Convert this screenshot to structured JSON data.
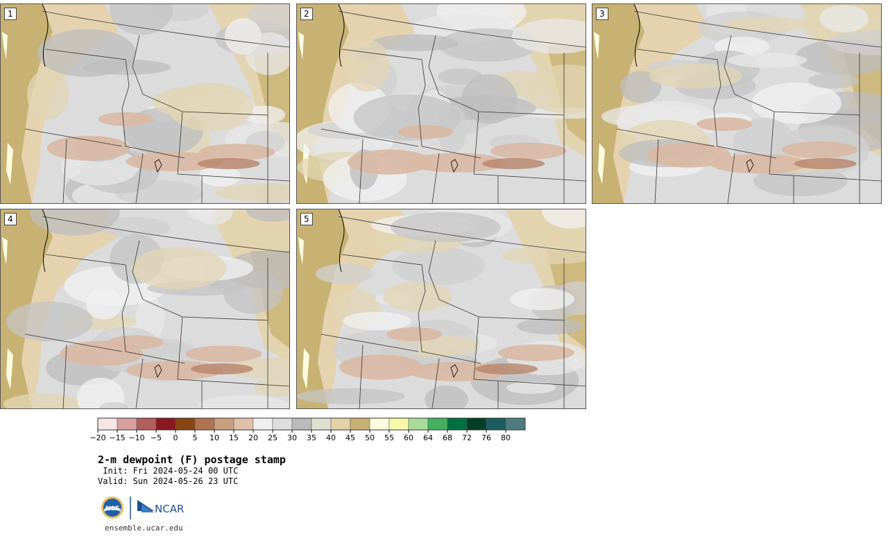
{
  "title": "2-m dewpoint (F) postage stamp",
  "init": " Init: Fri 2024-05-24 00 UTC",
  "valid": "Valid: Sun 2024-05-26 23 UTC",
  "website": "ensemble.ucar.edu",
  "logos": {
    "nsf": "NSF",
    "ncar": "NCAR"
  },
  "panels": [
    {
      "label": "1"
    },
    {
      "label": "2"
    },
    {
      "label": "3"
    },
    {
      "label": "4"
    },
    {
      "label": "5"
    }
  ],
  "colorbar": {
    "ticks": [
      "−20",
      "−15",
      "−10",
      "−5",
      "0",
      "5",
      "10",
      "15",
      "20",
      "25",
      "30",
      "35",
      "40",
      "45",
      "50",
      "55",
      "60",
      "64",
      "68",
      "72",
      "76",
      "80"
    ],
    "colors": [
      "#f6e6e6",
      "#d8a0a0",
      "#b35e5e",
      "#8a1822",
      "#8a4513",
      "#b07350",
      "#c8a080",
      "#dfc0aa",
      "#f0f0f0",
      "#dedede",
      "#bababa",
      "#e0e0d0",
      "#e4d2a8",
      "#c8b273",
      "#fffde0",
      "#f8f8a8",
      "#a8dc98",
      "#44b060",
      "#007040",
      "#003e28",
      "#1a5c60",
      "#4c7c80"
    ]
  }
}
